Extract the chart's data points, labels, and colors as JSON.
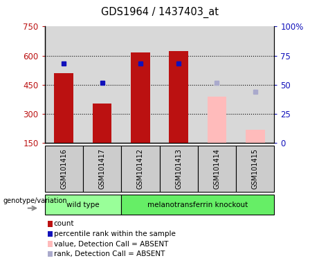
{
  "title": "GDS1964 / 1437403_at",
  "samples": [
    "GSM101416",
    "GSM101417",
    "GSM101412",
    "GSM101413",
    "GSM101414",
    "GSM101415"
  ],
  "count_values": [
    510,
    355,
    615,
    625,
    null,
    null
  ],
  "count_absent": [
    null,
    null,
    null,
    null,
    390,
    220
  ],
  "rank_values": [
    68,
    52,
    68,
    68,
    null,
    null
  ],
  "rank_absent": [
    null,
    null,
    null,
    null,
    52,
    44
  ],
  "ylim_left": [
    150,
    750
  ],
  "ylim_right": [
    0,
    100
  ],
  "yticks_left": [
    150,
    300,
    450,
    600,
    750
  ],
  "yticks_right": [
    0,
    25,
    50,
    75,
    100
  ],
  "grid_lines": [
    300,
    450,
    600
  ],
  "groups": [
    {
      "label": "wild type",
      "indices": [
        0,
        1
      ],
      "color": "#99ff99"
    },
    {
      "label": "melanotransferrin knockout",
      "indices": [
        2,
        3,
        4,
        5
      ],
      "color": "#66ee66"
    }
  ],
  "bar_width": 0.5,
  "bar_color_present": "#bb1111",
  "bar_color_absent": "#ffbbbb",
  "rank_color_present": "#1111bb",
  "rank_color_absent": "#aaaacc",
  "plot_bg": "#ffffff",
  "axes_bg": "#d8d8d8",
  "sample_box_bg": "#cccccc",
  "genotype_label": "genotype/variation",
  "legend_items": [
    {
      "label": "count",
      "color": "#bb1111"
    },
    {
      "label": "percentile rank within the sample",
      "color": "#1111bb"
    },
    {
      "label": "value, Detection Call = ABSENT",
      "color": "#ffbbbb"
    },
    {
      "label": "rank, Detection Call = ABSENT",
      "color": "#aaaacc"
    }
  ]
}
